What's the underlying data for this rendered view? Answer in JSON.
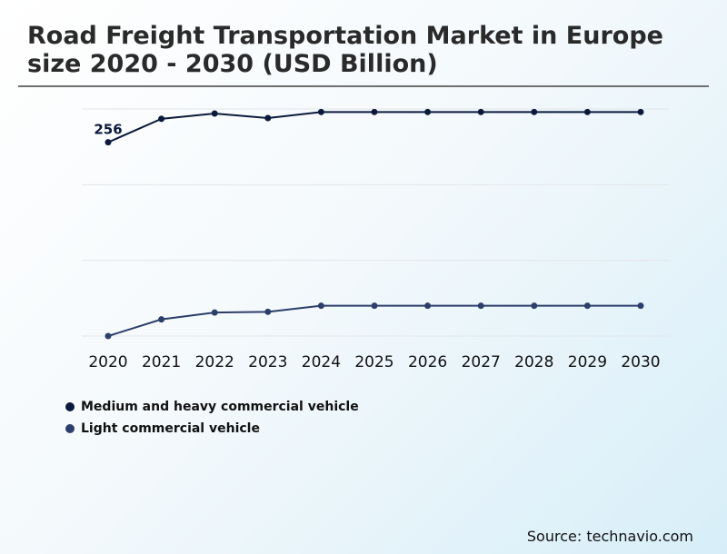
{
  "page": {
    "title": "Road Freight Transportation Market in Europe size 2020 - 2030 (USD Billion)",
    "source": "Source: technavio.com"
  },
  "chart_data": {
    "type": "line",
    "title": "Road Freight Transportation Market in Europe size 2020 - 2030 (USD Billion)",
    "xlabel": "",
    "ylabel": "",
    "grid": true,
    "legend_position": "bottom-left",
    "categories": [
      "2020",
      "2021",
      "2022",
      "2023",
      "2024",
      "2025",
      "2026",
      "2027",
      "2028",
      "2029",
      "2030"
    ],
    "ylim": [
      0,
      300
    ],
    "series": [
      {
        "name": "Medium and heavy commercial vehicle",
        "color": "#0b1a3c",
        "values": [
          256,
          287,
          294,
          288,
          296,
          296,
          296,
          296,
          296,
          296,
          296
        ],
        "labels": [
          "256",
          "",
          "",
          "",
          "",
          "",
          "",
          "",
          "",
          "",
          ""
        ]
      },
      {
        "name": "Light commercial vehicle",
        "color": "#2c3e6b",
        "values": [
          0,
          22,
          31,
          32,
          40,
          40,
          40,
          40,
          40,
          40,
          40
        ],
        "labels": [
          "",
          "",
          "",
          "",
          "",
          "",
          "",
          "",
          "",
          "",
          ""
        ]
      }
    ]
  }
}
